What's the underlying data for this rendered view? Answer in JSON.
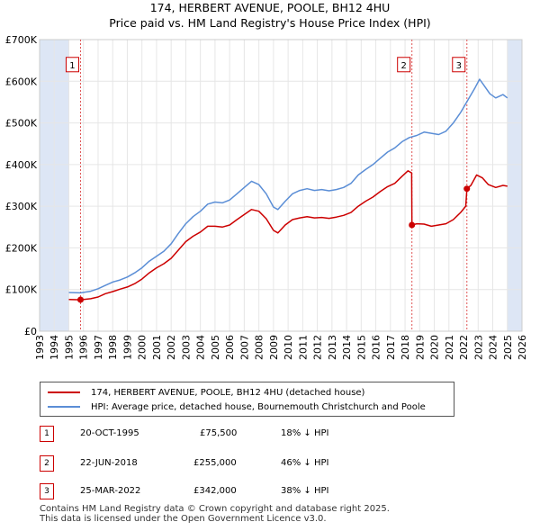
{
  "title_line1": "174, HERBERT AVENUE, POOLE, BH12 4HU",
  "title_line2": "Price paid vs. HM Land Registry's House Price Index (HPI)",
  "colors": {
    "price": "#cc0000",
    "hpi": "#5b8ed6",
    "shade": "#dde6f5",
    "grid": "#e6e6e6",
    "marker": "#cc0000"
  },
  "chart_data": {
    "type": "line",
    "title": "Price paid vs. HM Land Registry's House Price Index (HPI)",
    "xlabel": "",
    "ylabel": "",
    "xlim": [
      1993,
      2026
    ],
    "ylim": [
      0,
      700000
    ],
    "x_ticks": [
      1993,
      1994,
      1995,
      1996,
      1997,
      1998,
      1999,
      2000,
      2001,
      2002,
      2003,
      2004,
      2005,
      2006,
      2007,
      2008,
      2009,
      2010,
      2011,
      2012,
      2013,
      2014,
      2015,
      2016,
      2017,
      2018,
      2019,
      2020,
      2021,
      2022,
      2023,
      2024,
      2025,
      2026
    ],
    "y_ticks": [
      {
        "value": 0,
        "label": "£0"
      },
      {
        "value": 100000,
        "label": "£100K"
      },
      {
        "value": 200000,
        "label": "£200K"
      },
      {
        "value": 300000,
        "label": "£300K"
      },
      {
        "value": 400000,
        "label": "£400K"
      },
      {
        "value": 500000,
        "label": "£500K"
      },
      {
        "value": 600000,
        "label": "£600K"
      },
      {
        "value": 700000,
        "label": "£700K"
      }
    ],
    "shaded_ranges": [
      [
        1993,
        1995
      ],
      [
        2025,
        2026
      ]
    ],
    "series": [
      {
        "name": "174, HERBERT AVENUE, POOLE, BH12 4HU (detached house)",
        "color": "#cc0000",
        "points": [
          [
            1995.0,
            76000
          ],
          [
            1995.8,
            75500
          ],
          [
            1996.5,
            78000
          ],
          [
            1997.0,
            82000
          ],
          [
            1997.5,
            90000
          ],
          [
            1998.0,
            95000
          ],
          [
            1998.5,
            101000
          ],
          [
            1999.0,
            106000
          ],
          [
            1999.5,
            114000
          ],
          [
            2000.0,
            125000
          ],
          [
            2000.5,
            140000
          ],
          [
            2001.0,
            152000
          ],
          [
            2001.5,
            162000
          ],
          [
            2002.0,
            175000
          ],
          [
            2002.5,
            195000
          ],
          [
            2003.0,
            215000
          ],
          [
            2003.5,
            228000
          ],
          [
            2004.0,
            238000
          ],
          [
            2004.5,
            252000
          ],
          [
            2005.0,
            252000
          ],
          [
            2005.5,
            250000
          ],
          [
            2006.0,
            255000
          ],
          [
            2006.5,
            268000
          ],
          [
            2007.0,
            280000
          ],
          [
            2007.5,
            292000
          ],
          [
            2008.0,
            288000
          ],
          [
            2008.5,
            270000
          ],
          [
            2009.0,
            242000
          ],
          [
            2009.3,
            236000
          ],
          [
            2009.8,
            255000
          ],
          [
            2010.3,
            268000
          ],
          [
            2010.8,
            272000
          ],
          [
            2011.3,
            275000
          ],
          [
            2011.8,
            272000
          ],
          [
            2012.3,
            273000
          ],
          [
            2012.8,
            271000
          ],
          [
            2013.3,
            274000
          ],
          [
            2013.8,
            278000
          ],
          [
            2014.3,
            285000
          ],
          [
            2014.8,
            300000
          ],
          [
            2015.3,
            312000
          ],
          [
            2015.8,
            322000
          ],
          [
            2016.3,
            335000
          ],
          [
            2016.8,
            347000
          ],
          [
            2017.3,
            355000
          ],
          [
            2017.8,
            372000
          ],
          [
            2018.2,
            385000
          ],
          [
            2018.45,
            380000
          ],
          [
            2018.47,
            255000
          ],
          [
            2018.8,
            258000
          ],
          [
            2019.3,
            257000
          ],
          [
            2019.8,
            252000
          ],
          [
            2020.3,
            255000
          ],
          [
            2020.8,
            258000
          ],
          [
            2021.3,
            268000
          ],
          [
            2021.8,
            285000
          ],
          [
            2022.15,
            300000
          ],
          [
            2022.23,
            342000
          ],
          [
            2022.5,
            350000
          ],
          [
            2022.9,
            375000
          ],
          [
            2023.3,
            368000
          ],
          [
            2023.7,
            352000
          ],
          [
            2024.2,
            345000
          ],
          [
            2024.7,
            350000
          ],
          [
            2025.0,
            348000
          ]
        ]
      },
      {
        "name": "HPI: Average price, detached house, Bournemouth Christchurch and Poole",
        "color": "#5b8ed6",
        "points": [
          [
            1995.0,
            93000
          ],
          [
            1995.8,
            92000
          ],
          [
            1996.5,
            96000
          ],
          [
            1997.0,
            102000
          ],
          [
            1997.5,
            110000
          ],
          [
            1998.0,
            118000
          ],
          [
            1998.5,
            123000
          ],
          [
            1999.0,
            130000
          ],
          [
            1999.5,
            140000
          ],
          [
            2000.0,
            152000
          ],
          [
            2000.5,
            168000
          ],
          [
            2001.0,
            180000
          ],
          [
            2001.5,
            192000
          ],
          [
            2002.0,
            210000
          ],
          [
            2002.5,
            235000
          ],
          [
            2003.0,
            258000
          ],
          [
            2003.5,
            275000
          ],
          [
            2004.0,
            288000
          ],
          [
            2004.5,
            305000
          ],
          [
            2005.0,
            310000
          ],
          [
            2005.5,
            308000
          ],
          [
            2006.0,
            315000
          ],
          [
            2006.5,
            330000
          ],
          [
            2007.0,
            345000
          ],
          [
            2007.5,
            360000
          ],
          [
            2008.0,
            352000
          ],
          [
            2008.5,
            330000
          ],
          [
            2009.0,
            298000
          ],
          [
            2009.3,
            292000
          ],
          [
            2009.8,
            312000
          ],
          [
            2010.3,
            330000
          ],
          [
            2010.8,
            338000
          ],
          [
            2011.3,
            342000
          ],
          [
            2011.8,
            338000
          ],
          [
            2012.3,
            340000
          ],
          [
            2012.8,
            337000
          ],
          [
            2013.3,
            340000
          ],
          [
            2013.8,
            345000
          ],
          [
            2014.3,
            355000
          ],
          [
            2014.8,
            375000
          ],
          [
            2015.3,
            388000
          ],
          [
            2015.8,
            400000
          ],
          [
            2016.3,
            415000
          ],
          [
            2016.8,
            430000
          ],
          [
            2017.3,
            440000
          ],
          [
            2017.8,
            455000
          ],
          [
            2018.3,
            465000
          ],
          [
            2018.8,
            470000
          ],
          [
            2019.3,
            478000
          ],
          [
            2019.8,
            475000
          ],
          [
            2020.3,
            472000
          ],
          [
            2020.8,
            480000
          ],
          [
            2021.3,
            500000
          ],
          [
            2021.8,
            525000
          ],
          [
            2022.3,
            555000
          ],
          [
            2022.8,
            585000
          ],
          [
            2023.1,
            605000
          ],
          [
            2023.4,
            590000
          ],
          [
            2023.8,
            570000
          ],
          [
            2024.2,
            560000
          ],
          [
            2024.7,
            568000
          ],
          [
            2025.0,
            560000
          ]
        ]
      }
    ],
    "annotations": [
      {
        "label": "1",
        "x": 1995.8,
        "value": 75500,
        "box_value": 640000
      },
      {
        "label": "2",
        "x": 2018.47,
        "value": 255000,
        "box_value": 640000
      },
      {
        "label": "3",
        "x": 2022.23,
        "value": 342000,
        "box_value": 640000
      }
    ]
  },
  "legend": {
    "price_label": "174, HERBERT AVENUE, POOLE, BH12 4HU (detached house)",
    "hpi_label": "HPI: Average price, detached house, Bournemouth Christchurch and Poole"
  },
  "transactions": [
    {
      "num": "1",
      "date": "20-OCT-1995",
      "price": "£75,500",
      "hpi": "18% ↓ HPI"
    },
    {
      "num": "2",
      "date": "22-JUN-2018",
      "price": "£255,000",
      "hpi": "46% ↓ HPI"
    },
    {
      "num": "3",
      "date": "25-MAR-2022",
      "price": "£342,000",
      "hpi": "38% ↓ HPI"
    }
  ],
  "footer": {
    "line1": "Contains HM Land Registry data © Crown copyright and database right 2025.",
    "line2": "This data is licensed under the Open Government Licence v3.0."
  }
}
